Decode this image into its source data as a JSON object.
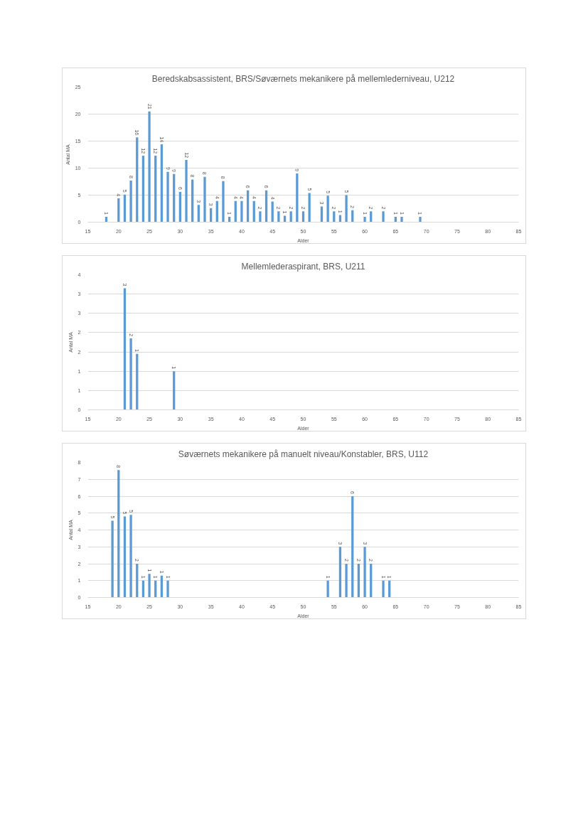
{
  "chart_data": [
    {
      "type": "bar",
      "title": "Beredskabsassistent, BRS/Søværnets mekanikere på mellemlederniveau, U212",
      "xlabel": "Alder",
      "ylabel": "Antal MA",
      "x": [
        18,
        20,
        21,
        22,
        23,
        24,
        25,
        26,
        27,
        28,
        29,
        30,
        31,
        32,
        33,
        34,
        35,
        36,
        37,
        38,
        39,
        40,
        41,
        42,
        43,
        44,
        45,
        46,
        47,
        48,
        49,
        50,
        51,
        53,
        54,
        55,
        56,
        57,
        58,
        60,
        61,
        63,
        65,
        66,
        69
      ],
      "values": [
        1.0,
        4.4,
        5.1,
        7.7,
        15.7,
        12.3,
        20.5,
        12.3,
        14.4,
        9.3,
        8.9,
        5.6,
        11.5,
        7.9,
        3.2,
        8.4,
        2.6,
        3.9,
        7.6,
        1.0,
        3.9,
        3.9,
        5.9,
        3.9,
        2.0,
        5.9,
        3.8,
        2.0,
        1.2,
        2.0,
        9.0,
        2.0,
        5.4,
        2.9,
        4.9,
        2.0,
        1.3,
        5.0,
        2.2,
        1.0,
        2.0,
        2.0,
        1.0,
        1.0,
        1.0
      ],
      "value_labels": [
        "1",
        "4",
        "5",
        "8",
        "16",
        "12",
        "21",
        "12",
        "14",
        "9",
        "9",
        "6",
        "12",
        "8",
        "3",
        "8",
        "3",
        "4",
        "8",
        "1",
        "4",
        "4",
        "6",
        "4",
        "2",
        "6",
        "4",
        "2",
        "1",
        "2",
        "9",
        "2",
        "5",
        "3",
        "5",
        "2",
        "1",
        "5",
        "2",
        "1",
        "2",
        "2",
        "1",
        "1",
        "1"
      ],
      "color": "#5b9bd5",
      "xlim": [
        15,
        85
      ],
      "xticks": [
        15,
        20,
        25,
        30,
        35,
        40,
        45,
        50,
        55,
        60,
        65,
        70,
        75,
        80,
        85
      ],
      "ylim": [
        0,
        25
      ],
      "yticks": [
        0,
        5,
        10,
        15,
        20,
        25
      ],
      "grid": "y"
    },
    {
      "type": "bar",
      "title": "Mellemlederaspirant, BRS, U211",
      "xlabel": "Alder",
      "ylabel": "Antal MA",
      "x": [
        21,
        22,
        23,
        29
      ],
      "values": [
        3.15,
        1.85,
        1.45,
        1.0
      ],
      "value_labels": [
        "3",
        "2",
        "1",
        "1"
      ],
      "color": "#5b9bd5",
      "xlim": [
        15,
        85
      ],
      "xticks": [
        15,
        20,
        25,
        30,
        35,
        40,
        45,
        50,
        55,
        60,
        65,
        70,
        75,
        80,
        85
      ],
      "ylim": [
        0,
        3.5
      ],
      "yticks": [
        0,
        {
          "value": 0.5,
          "label": "1"
        },
        1,
        {
          "value": 1.5,
          "label": "2"
        },
        2,
        {
          "value": 2.5,
          "label": "3"
        },
        3,
        {
          "value": 3.5,
          "label": "4"
        }
      ],
      "grid": "y"
    },
    {
      "type": "bar",
      "title": "Søværnets mekanikere på manuelt niveau/Konstabler, BRS, U112",
      "xlabel": "Alder",
      "ylabel": "Antal MA",
      "x": [
        19,
        20,
        21,
        22,
        23,
        24,
        25,
        26,
        27,
        28,
        54,
        56,
        57,
        58,
        59,
        60,
        61,
        63,
        64
      ],
      "values": [
        4.55,
        7.55,
        4.8,
        4.9,
        2.0,
        1.0,
        1.4,
        1.0,
        1.3,
        1.0,
        1.0,
        3.0,
        2.0,
        6.0,
        2.0,
        3.0,
        2.0,
        1.0,
        1.0
      ],
      "value_labels": [
        "5",
        "8",
        "5",
        "5",
        "2",
        "1",
        "1",
        "1",
        "1",
        "1",
        "1",
        "3",
        "2",
        "6",
        "2",
        "3",
        "2",
        "1",
        "1"
      ],
      "color": "#5b9bd5",
      "xlim": [
        15,
        85
      ],
      "xticks": [
        15,
        20,
        25,
        30,
        35,
        40,
        45,
        50,
        55,
        60,
        65,
        70,
        75,
        80,
        85
      ],
      "ylim": [
        0,
        8
      ],
      "yticks": [
        0,
        1,
        2,
        3,
        4,
        5,
        6,
        7,
        8
      ],
      "grid": "y"
    }
  ]
}
